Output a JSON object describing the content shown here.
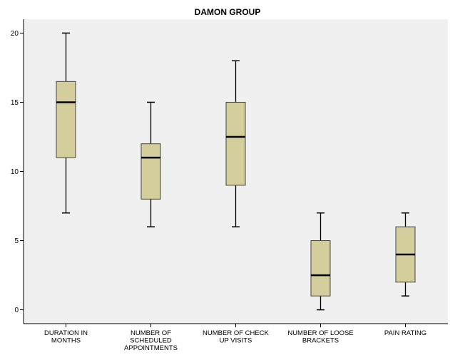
{
  "chart_data": {
    "type": "boxplot",
    "title": "DAMON GROUP",
    "xlabel": "",
    "ylabel": "",
    "ylim": [
      -1,
      21
    ],
    "yticks": [
      0,
      5,
      10,
      15,
      20
    ],
    "grid": false,
    "legend": "none",
    "categories": [
      [
        "DURATION IN",
        "MONTHS"
      ],
      [
        "NUMBER OF",
        "SCHEDULED",
        "APPOINTMENTS"
      ],
      [
        "NUMBER OF CHECK",
        "UP VISITS"
      ],
      [
        "NUMBER OF LOOSE",
        "BRACKETS"
      ],
      [
        "PAIN RATING"
      ]
    ],
    "boxes": [
      {
        "min": 7,
        "q1": 11,
        "median": 15,
        "q3": 16.5,
        "max": 20
      },
      {
        "min": 6,
        "q1": 8,
        "median": 11,
        "q3": 12,
        "max": 15
      },
      {
        "min": 6,
        "q1": 9,
        "median": 12.5,
        "q3": 15,
        "max": 18
      },
      {
        "min": 0,
        "q1": 1,
        "median": 2.5,
        "q3": 5,
        "max": 7
      },
      {
        "min": 1,
        "q1": 2,
        "median": 4,
        "q3": 6,
        "max": 7
      }
    ],
    "colors": {
      "plot_background": "#f0f0f0",
      "box_fill": "#d3ce9c",
      "box_stroke": "#444444",
      "whisker": "#000000",
      "median": "#000000",
      "axis": "#000000"
    }
  }
}
